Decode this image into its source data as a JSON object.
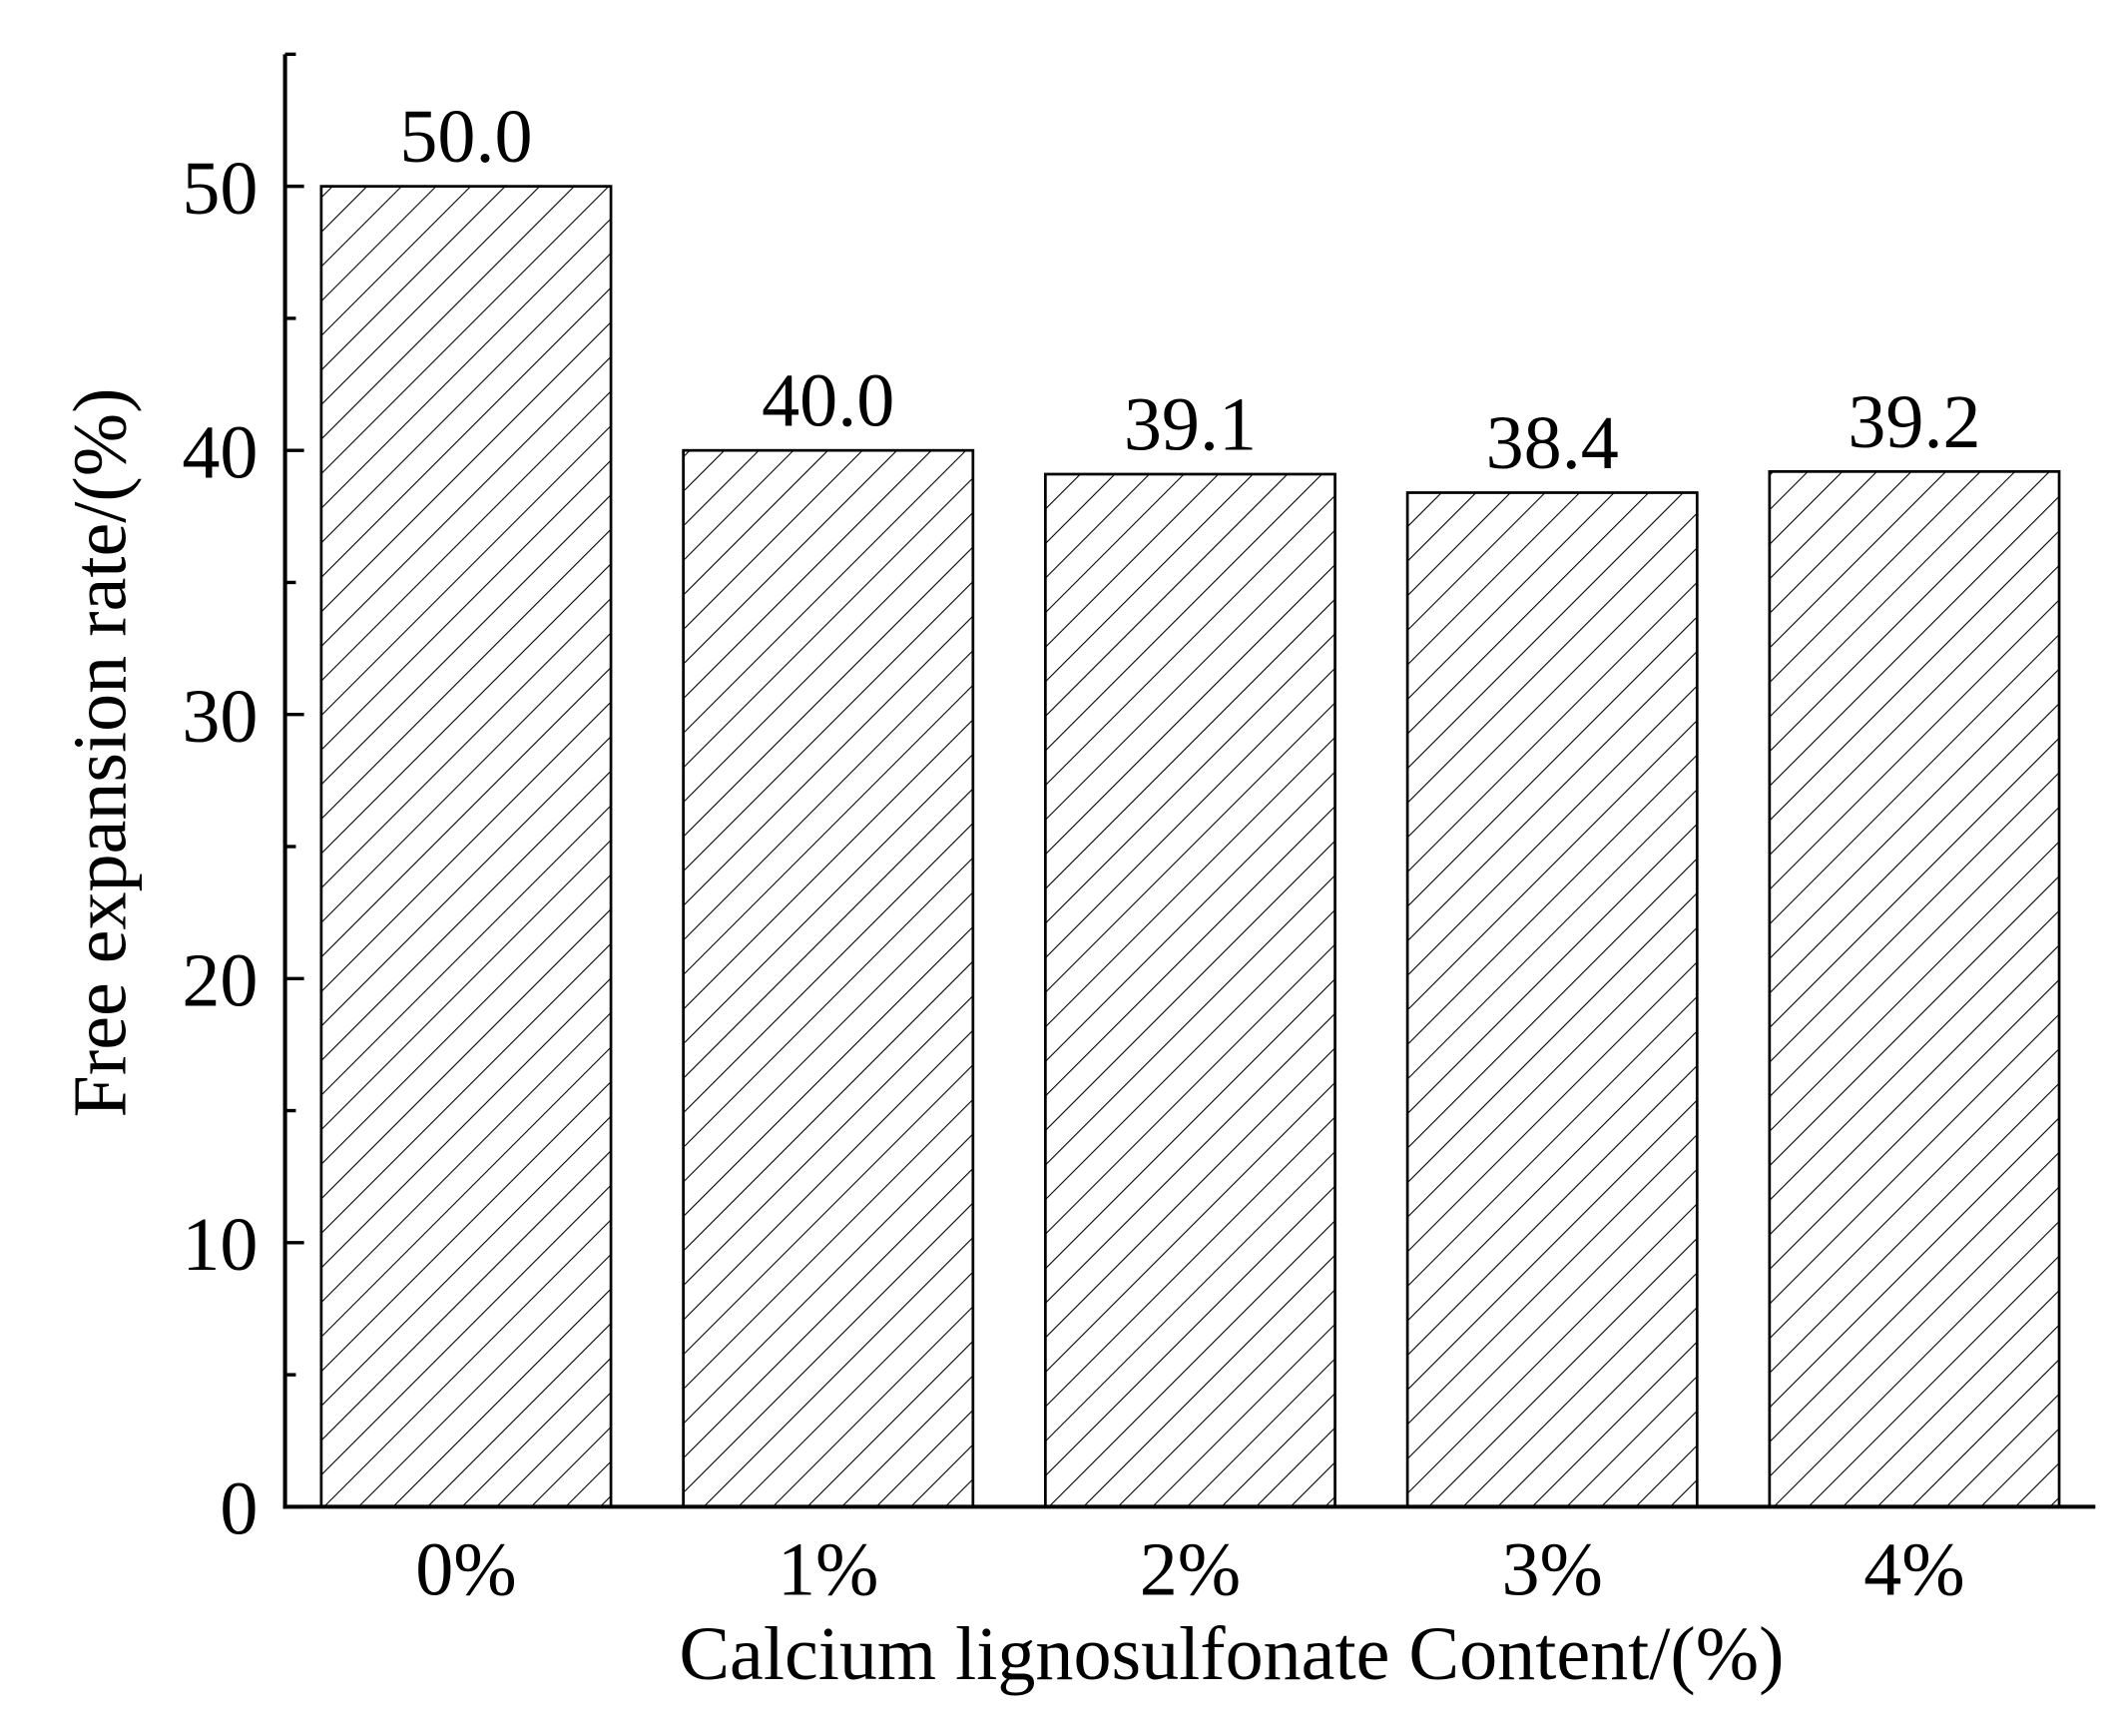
{
  "chart_data": {
    "type": "bar",
    "title": "",
    "xlabel": "Calcium lignosulfonate Content/(%)",
    "ylabel": "Free expansion rate/(%)",
    "categories": [
      "0%",
      "1%",
      "2%",
      "3%",
      "4%"
    ],
    "values": [
      50.0,
      40.0,
      39.1,
      38.4,
      39.2
    ],
    "data_labels": [
      "50.0",
      "40.0",
      "39.1",
      "38.4",
      "39.2"
    ],
    "ylim": [
      0,
      55
    ],
    "yticks": [
      0,
      10,
      20,
      30,
      40,
      50
    ],
    "yticks_minor_step": 5,
    "grid": false,
    "legend": "none",
    "bar_fill": "diagonal-hatch",
    "colors": {
      "stroke": "#000000",
      "background": "#ffffff"
    }
  }
}
